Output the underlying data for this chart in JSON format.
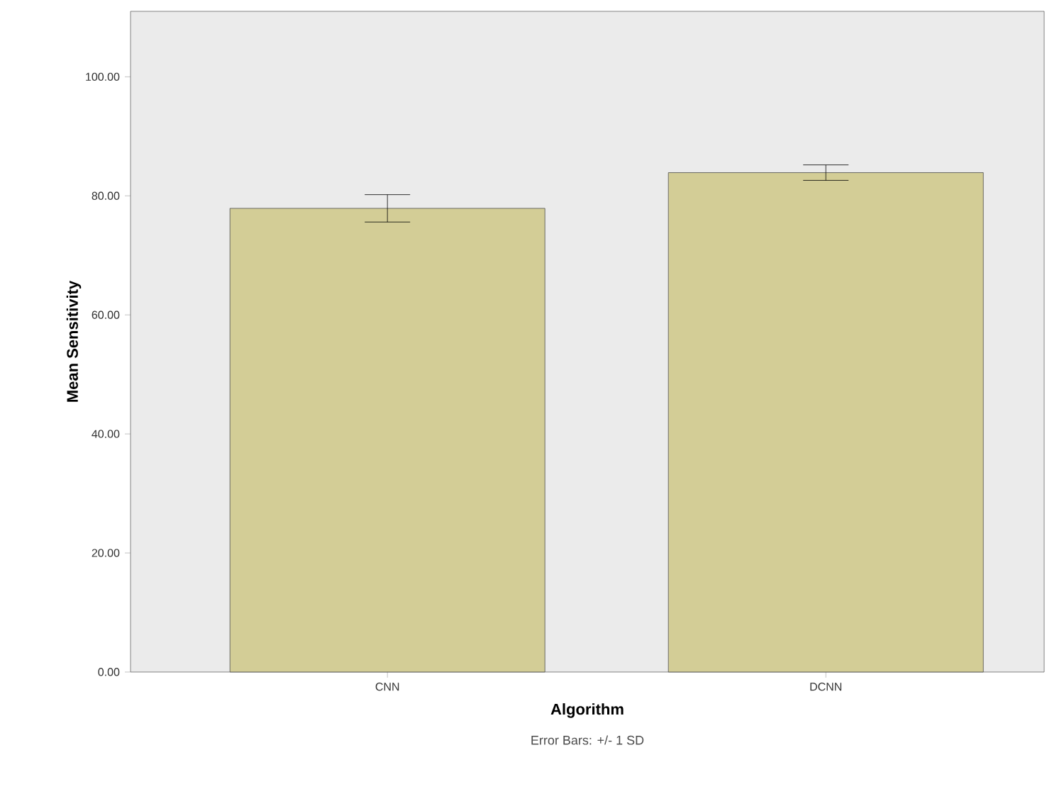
{
  "chart_data": {
    "type": "bar",
    "xlabel": "Algorithm",
    "ylabel": "Mean Sensitivity",
    "categories": [
      "CNN",
      "DCNN"
    ],
    "values": [
      77.9,
      83.9
    ],
    "errors": [
      2.3,
      1.3
    ],
    "color": "#d3cd96",
    "ylim": [
      0,
      111
    ],
    "yticks": [
      {
        "value": 0,
        "label": "0.00"
      },
      {
        "value": 20,
        "label": "20.00"
      },
      {
        "value": 40,
        "label": "40.00"
      },
      {
        "value": 60,
        "label": "60.00"
      },
      {
        "value": 80,
        "label": "80.00"
      },
      {
        "value": 100,
        "label": "100.00"
      }
    ],
    "grid": false,
    "annotations": [
      "Error Bars: +/- 1 SD"
    ]
  }
}
